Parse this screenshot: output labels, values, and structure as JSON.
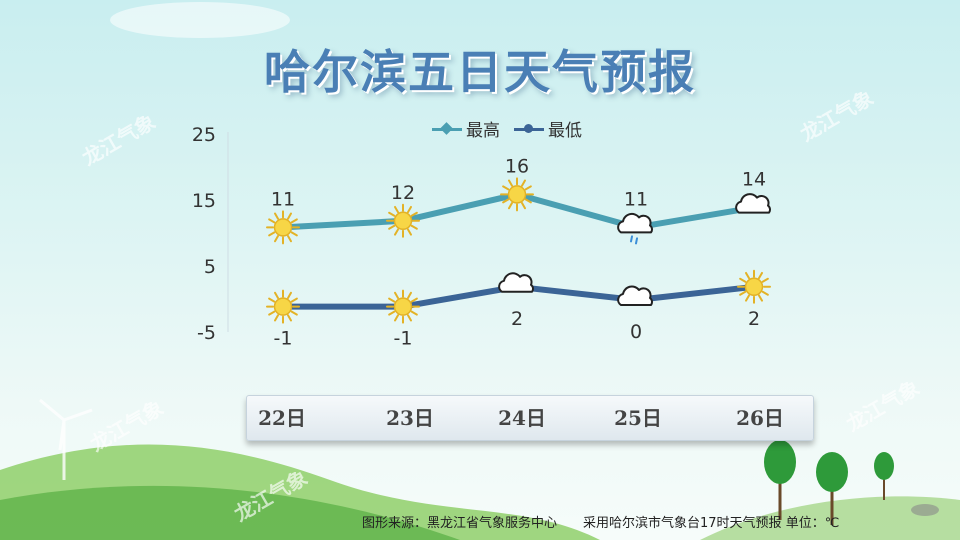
{
  "title": "哈尔滨五日天气预报",
  "legend": [
    {
      "label": "最高",
      "color": "#4a9fb2",
      "marker": "diamond"
    },
    {
      "label": "最低",
      "color": "#3b6496",
      "marker": "circle"
    }
  ],
  "y_axis": {
    "ticks": [
      "25",
      "15",
      "5",
      "-5"
    ]
  },
  "dates": [
    "22日",
    "23日",
    "24日",
    "25日",
    "26日"
  ],
  "footer": {
    "source": "图形来源：黑龙江省气象服务中心",
    "note": "采用哈尔滨市气象台17时天气预报 单位：℃"
  },
  "watermark": "龙江气象",
  "chart_data": {
    "type": "line",
    "categories": [
      "22日",
      "23日",
      "24日",
      "25日",
      "26日"
    ],
    "ylim": [
      -5,
      25
    ],
    "yticks": [
      -5,
      5,
      15,
      25
    ],
    "series": [
      {
        "name": "最高",
        "values": [
          11,
          12,
          16,
          11,
          14
        ],
        "labels": [
          "11",
          "12",
          "16",
          "11",
          "14"
        ],
        "icons": [
          "sun-icon",
          "sun-icon",
          "sun-icon",
          "cloud-rain-icon",
          "cloud-icon"
        ],
        "color": "#4a9fb2"
      },
      {
        "name": "最低",
        "values": [
          -1,
          -1,
          2,
          0,
          2
        ],
        "labels": [
          "-1",
          "-1",
          "2",
          "0",
          "2"
        ],
        "icons": [
          "sun-icon",
          "sun-icon",
          "cloud-icon",
          "cloud-icon",
          "sun-icon"
        ],
        "color": "#3b6496"
      }
    ]
  }
}
